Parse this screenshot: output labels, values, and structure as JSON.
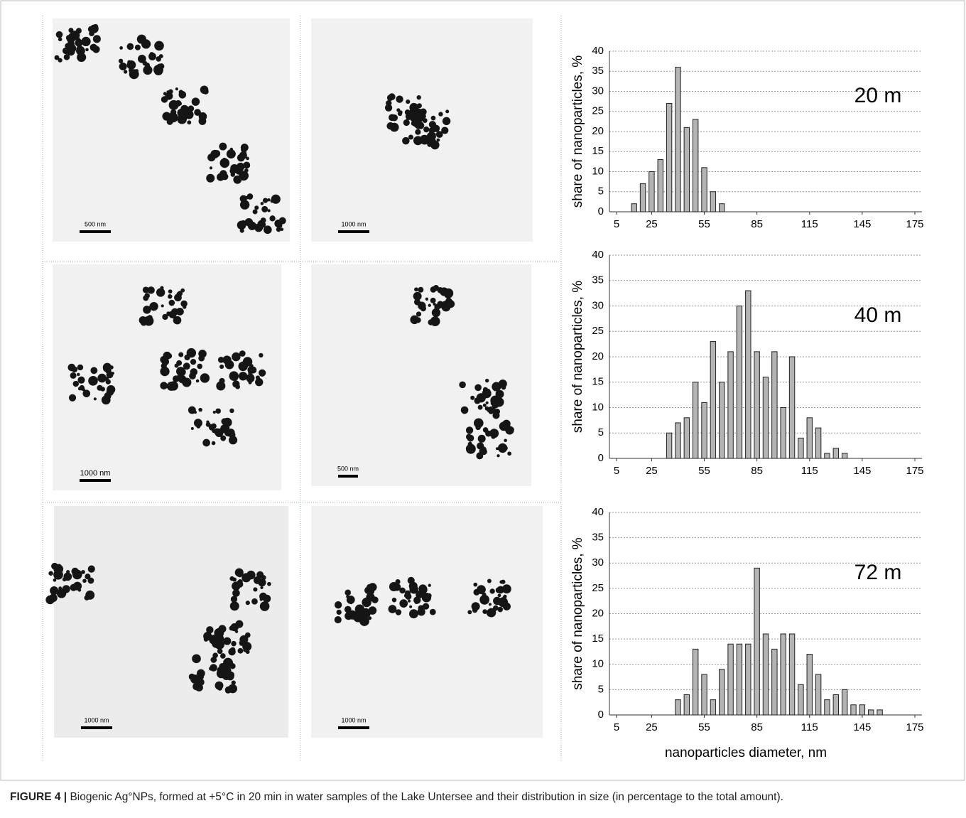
{
  "figure": {
    "label": "FIGURE 4 |",
    "caption": "Biogenic Ag°NPs, formed at +5°C in 20 min in water samples of the Lake Untersee and their distribution in size (in percentage to the total amount)."
  },
  "micrographs": [
    {
      "scale_bar": "500 nm"
    },
    {
      "scale_bar": "1000 nm"
    },
    {
      "scale_bar": "1000 nm"
    },
    {
      "scale_bar": "500 nm"
    },
    {
      "scale_bar": "1000 nm"
    },
    {
      "scale_bar": "1000 nm"
    }
  ],
  "chart_data": [
    {
      "type": "bar",
      "annotation": "20 m",
      "ylabel": "share of nanoparticles,  %",
      "color": "#b4b4b4",
      "x": [
        15,
        20,
        25,
        30,
        35,
        40,
        45,
        50,
        55,
        60,
        65
      ],
      "values": [
        2,
        7,
        10,
        13,
        27,
        36,
        21,
        23,
        11,
        5,
        2
      ],
      "xlim": [
        5,
        175
      ],
      "xticks": [
        5,
        25,
        55,
        85,
        115,
        145,
        175
      ],
      "ylim": [
        0,
        40
      ],
      "yticks": [
        0,
        5,
        10,
        15,
        20,
        25,
        30,
        35,
        40
      ],
      "grid": true
    },
    {
      "type": "bar",
      "annotation": "40 m",
      "ylabel": "share of nanoparticles,  %",
      "color": "#b4b4b4",
      "x": [
        35,
        40,
        45,
        50,
        55,
        60,
        65,
        70,
        75,
        80,
        85,
        90,
        95,
        100,
        105,
        110,
        115,
        120,
        125,
        130,
        135
      ],
      "values": [
        5,
        7,
        8,
        15,
        11,
        23,
        15,
        21,
        30,
        33,
        21,
        16,
        21,
        10,
        20,
        4,
        8,
        6,
        1,
        2,
        1
      ],
      "xlim": [
        5,
        175
      ],
      "xticks": [
        5,
        25,
        55,
        85,
        115,
        145,
        175
      ],
      "ylim": [
        0,
        40
      ],
      "yticks": [
        0,
        5,
        10,
        15,
        20,
        25,
        30,
        35,
        40
      ],
      "grid": true
    },
    {
      "type": "bar",
      "annotation": "72 m",
      "ylabel": "share of nanoparticles,  %",
      "xlabel": "nanoparticles diameter,  nm",
      "color": "#b4b4b4",
      "x": [
        40,
        45,
        50,
        55,
        60,
        65,
        70,
        75,
        80,
        85,
        90,
        95,
        100,
        105,
        110,
        115,
        120,
        125,
        130,
        135,
        140,
        145,
        150,
        155
      ],
      "values": [
        3,
        4,
        13,
        8,
        3,
        9,
        14,
        14,
        14,
        29,
        16,
        13,
        16,
        16,
        6,
        12,
        8,
        3,
        4,
        5,
        2,
        2,
        1,
        1
      ],
      "xlim": [
        5,
        175
      ],
      "xticks": [
        5,
        25,
        55,
        85,
        115,
        145,
        175
      ],
      "ylim": [
        0,
        40
      ],
      "yticks": [
        0,
        5,
        10,
        15,
        20,
        25,
        30,
        35,
        40
      ],
      "grid": true
    }
  ]
}
